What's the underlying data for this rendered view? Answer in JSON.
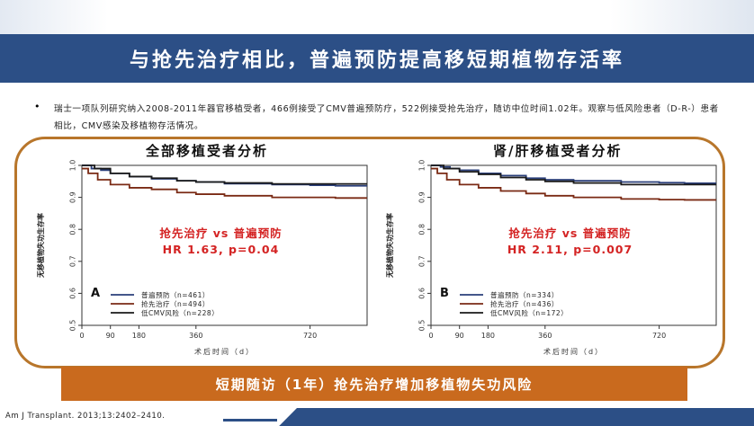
{
  "slide": {
    "title": "与抢先治疗相比，普遍预防提高移短期植物存活率",
    "bullet": "瑞士一项队列研究纳入2008-2011年器官移植受者，466例接受了CMV普遍预防疗，522例接受抢先治疗，随访中位时间1.02年。观察与低风险患者（D-R-）患者相比，CMV感染及移植物存活情况。",
    "banner": "短期随访（1年）抢先治疗增加移植物失功风险",
    "citation": "Am J Transplant. 2013;13:2402–2410."
  },
  "chart_data": [
    {
      "type": "line",
      "title": "全部移植受者分析",
      "panel_letter": "A",
      "xlabel": "术后时间（d）",
      "ylabel": "无移植物失功生存率",
      "xticks": [
        0,
        90,
        180,
        360,
        720
      ],
      "yticks": [
        "1.0",
        "0.9",
        "0.8",
        "0.7",
        "0.6",
        "0.5"
      ],
      "xlim": [
        0,
        900
      ],
      "ylim": [
        0.5,
        1.0
      ],
      "annotation_line1": "抢先治疗  vs  普遍预防",
      "annotation_line2": "HR  1.63,  p=0.04",
      "series": [
        {
          "name": "普遍预防（n=461）",
          "color": "#2a3f7a",
          "x": [
            0,
            30,
            60,
            90,
            150,
            220,
            300,
            360,
            450,
            600,
            720,
            800,
            900
          ],
          "y": [
            1.0,
            0.99,
            0.985,
            0.975,
            0.965,
            0.958,
            0.952,
            0.948,
            0.943,
            0.94,
            0.938,
            0.936,
            0.936
          ]
        },
        {
          "name": "抢先治疗（n=494）",
          "color": "#7a2a14",
          "x": [
            0,
            20,
            50,
            90,
            150,
            220,
            300,
            360,
            450,
            600,
            720,
            800,
            900
          ],
          "y": [
            0.99,
            0.975,
            0.955,
            0.94,
            0.93,
            0.925,
            0.915,
            0.91,
            0.905,
            0.9,
            0.9,
            0.898,
            0.898
          ]
        },
        {
          "name": "低CMV风险（n=228）",
          "color": "#1a1a1a",
          "x": [
            0,
            40,
            90,
            150,
            220,
            300,
            360,
            450,
            600,
            720,
            800,
            900
          ],
          "y": [
            1.0,
            0.99,
            0.975,
            0.965,
            0.96,
            0.952,
            0.948,
            0.945,
            0.942,
            0.942,
            0.942,
            0.942
          ]
        }
      ]
    },
    {
      "type": "line",
      "title": "肾/肝移植受者分析",
      "panel_letter": "B",
      "xlabel": "术后时间（d）",
      "ylabel": "无移植物失功生存率",
      "xticks": [
        0,
        90,
        180,
        360,
        720
      ],
      "yticks": [
        "1.0",
        "0.9",
        "0.8",
        "0.7",
        "0.6",
        "0.5"
      ],
      "xlim": [
        0,
        900
      ],
      "ylim": [
        0.5,
        1.0
      ],
      "annotation_line1": "抢先治疗  vs  普遍预防",
      "annotation_line2": "HR  2.11,  p=0.007",
      "series": [
        {
          "name": "普遍预防（n=334）",
          "color": "#2a3f7a",
          "x": [
            0,
            30,
            60,
            90,
            150,
            220,
            300,
            360,
            450,
            600,
            720,
            800,
            900
          ],
          "y": [
            1.0,
            0.995,
            0.99,
            0.985,
            0.975,
            0.968,
            0.96,
            0.955,
            0.952,
            0.948,
            0.946,
            0.944,
            0.944
          ]
        },
        {
          "name": "抢先治疗（n=436）",
          "color": "#7a2a14",
          "x": [
            0,
            20,
            50,
            90,
            150,
            220,
            300,
            360,
            450,
            600,
            720,
            800,
            900
          ],
          "y": [
            0.99,
            0.975,
            0.955,
            0.94,
            0.93,
            0.92,
            0.912,
            0.905,
            0.9,
            0.895,
            0.893,
            0.892,
            0.892
          ]
        },
        {
          "name": "低CMV风险（n=172）",
          "color": "#1a1a1a",
          "x": [
            0,
            40,
            90,
            150,
            220,
            300,
            360,
            450,
            600,
            720,
            800,
            900
          ],
          "y": [
            1.0,
            0.99,
            0.98,
            0.972,
            0.962,
            0.955,
            0.95,
            0.945,
            0.94,
            0.94,
            0.94,
            0.94
          ]
        }
      ]
    }
  ]
}
